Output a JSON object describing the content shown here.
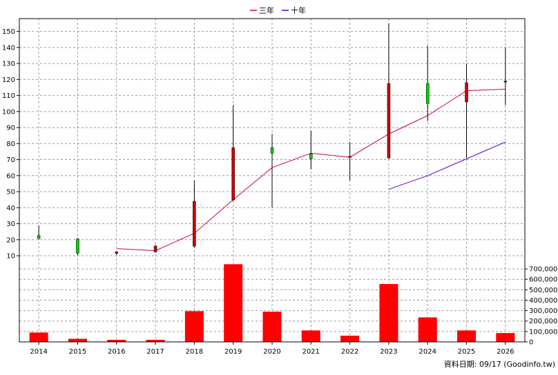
{
  "chart_data": {
    "type": "candlestick-with-volume",
    "legend": [
      {
        "name": "三年",
        "color": "#cc0044"
      },
      {
        "name": "十年",
        "color": "#5500cc"
      }
    ],
    "x": [
      "2014",
      "2015",
      "2016",
      "2017",
      "2018",
      "2019",
      "2020",
      "2021",
      "2022",
      "2023",
      "2024",
      "2025",
      "2026"
    ],
    "price_axis": {
      "ticks": [
        10,
        20,
        30,
        40,
        50,
        60,
        70,
        80,
        90,
        100,
        110,
        120,
        130,
        140,
        150
      ],
      "ylim": [
        7,
        158
      ]
    },
    "volume_axis": {
      "ticks": [
        0,
        100000,
        200000,
        300000,
        400000,
        500000,
        600000,
        700000
      ],
      "tick_labels": [
        "0",
        "100,000",
        "200,000",
        "300,000",
        "400,000",
        "500,000",
        "600,000",
        "700,000"
      ],
      "ylim": [
        0,
        780000
      ]
    },
    "candles": [
      {
        "x": "2014",
        "open": 21,
        "close": 22.6,
        "high": 29,
        "low": 20,
        "up": true
      },
      {
        "x": "2015",
        "open": 11.6,
        "close": 20.5,
        "high": 21,
        "low": 10.3,
        "up": true
      },
      {
        "x": "2016",
        "open": 12.5,
        "close": 11.5,
        "high": 12.5,
        "low": 10.5,
        "up": false
      },
      {
        "x": "2017",
        "open": 16,
        "close": 12.4,
        "high": 17,
        "low": 12,
        "up": false
      },
      {
        "x": "2018",
        "open": 44,
        "close": 16,
        "high": 57,
        "low": 15,
        "up": false
      },
      {
        "x": "2019",
        "open": 77.5,
        "close": 45,
        "high": 104,
        "low": 44,
        "up": false
      },
      {
        "x": "2020",
        "open": 74,
        "close": 77.5,
        "high": 86,
        "low": 40,
        "up": true
      },
      {
        "x": "2021",
        "open": 70.5,
        "close": 73.5,
        "high": 88,
        "low": 64,
        "up": true
      },
      {
        "x": "2022",
        "open": 72,
        "close": 72,
        "high": 81,
        "low": 57,
        "up": false
      },
      {
        "x": "2023",
        "open": 117.5,
        "close": 71,
        "high": 155,
        "low": 70.5,
        "up": false
      },
      {
        "x": "2024",
        "open": 105,
        "close": 117.5,
        "high": 141,
        "low": 94,
        "up": true
      },
      {
        "x": "2025",
        "open": 118,
        "close": 106,
        "high": 130,
        "low": 71,
        "up": false
      },
      {
        "x": "2026",
        "open": 119,
        "close": 119,
        "high": 140,
        "low": 104,
        "up": false
      }
    ],
    "series": [
      {
        "name": "三年",
        "color": "#cc0044",
        "x": [
          "2016",
          "2017",
          "2018",
          "2019",
          "2020",
          "2021",
          "2022",
          "2023",
          "2024",
          "2025",
          "2026"
        ],
        "values": [
          14.5,
          13.2,
          24,
          45,
          65,
          74,
          71.5,
          86,
          97.5,
          113,
          114
        ]
      },
      {
        "name": "十年",
        "color": "#5500cc",
        "x": [
          "2023",
          "2024",
          "2025",
          "2026"
        ],
        "values": [
          51.5,
          60,
          70.5,
          81
        ]
      }
    ],
    "volume": {
      "color": "#ff0000",
      "values": [
        90000,
        30000,
        20000,
        20000,
        295000,
        745000,
        290000,
        110000,
        60000,
        555000,
        235000,
        110000,
        85000
      ]
    },
    "grid": true
  },
  "footer": {
    "source": "資料日期: 09/17  (Goodinfo.tw)"
  }
}
